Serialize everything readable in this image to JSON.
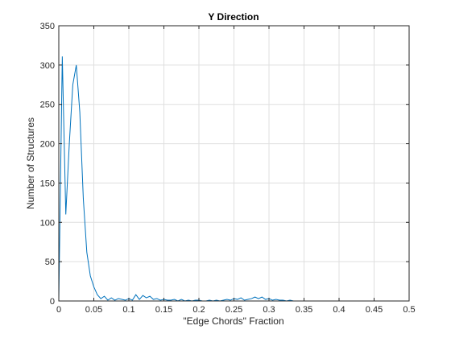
{
  "chart_data": {
    "type": "line",
    "title": "Y Direction",
    "xlabel": "\"Edge Chords\" Fraction",
    "ylabel": "Number of Structures",
    "xlim": [
      0,
      0.5
    ],
    "ylim": [
      0,
      350
    ],
    "xticks": [
      0,
      0.05,
      0.1,
      0.15,
      0.2,
      0.25,
      0.3,
      0.35,
      0.4,
      0.45,
      0.5
    ],
    "xtick_labels": [
      "0",
      "0.05",
      "0.1",
      "0.15",
      "0.2",
      "0.25",
      "0.3",
      "0.35",
      "0.4",
      "0.45",
      "0.5"
    ],
    "yticks": [
      0,
      50,
      100,
      150,
      200,
      250,
      300,
      350
    ],
    "ytick_labels": [
      "0",
      "50",
      "100",
      "150",
      "200",
      "250",
      "300",
      "350"
    ],
    "grid": true,
    "box": true,
    "line_color": "#0072BD",
    "series": [
      {
        "x": [
          0,
          0.005,
          0.01,
          0.015,
          0.02,
          0.025,
          0.03,
          0.035,
          0.04,
          0.045,
          0.05,
          0.055,
          0.06,
          0.065,
          0.07,
          0.075,
          0.08,
          0.085,
          0.09,
          0.095,
          0.1,
          0.105,
          0.11,
          0.115,
          0.12,
          0.125,
          0.13,
          0.135,
          0.14,
          0.145,
          0.15,
          0.155,
          0.16,
          0.165,
          0.17,
          0.175,
          0.18,
          0.185,
          0.19,
          0.195,
          0.2,
          0.205,
          0.21,
          0.215,
          0.22,
          0.225,
          0.23,
          0.235,
          0.24,
          0.245,
          0.25,
          0.255,
          0.26,
          0.265,
          0.27,
          0.275,
          0.28,
          0.285,
          0.29,
          0.295,
          0.3,
          0.305,
          0.31,
          0.315,
          0.32,
          0.325,
          0.33,
          0.335,
          0.34,
          0.35,
          0.4,
          0.45,
          0.5
        ],
        "values": [
          0,
          311,
          110,
          200,
          275,
          300,
          240,
          130,
          62,
          32,
          18,
          8,
          3,
          6,
          1,
          4,
          1,
          3,
          2,
          1,
          3,
          1,
          8,
          2,
          7,
          4,
          6,
          2,
          3,
          1,
          2,
          1,
          1,
          2,
          0,
          2,
          0,
          1,
          0,
          1,
          1,
          0,
          0,
          1,
          0,
          1,
          0,
          1,
          2,
          1,
          3,
          2,
          4,
          1,
          2,
          3,
          5,
          3,
          5,
          2,
          3,
          1,
          2,
          1,
          1,
          0,
          1,
          0,
          0,
          0,
          0,
          0,
          0
        ]
      }
    ]
  }
}
